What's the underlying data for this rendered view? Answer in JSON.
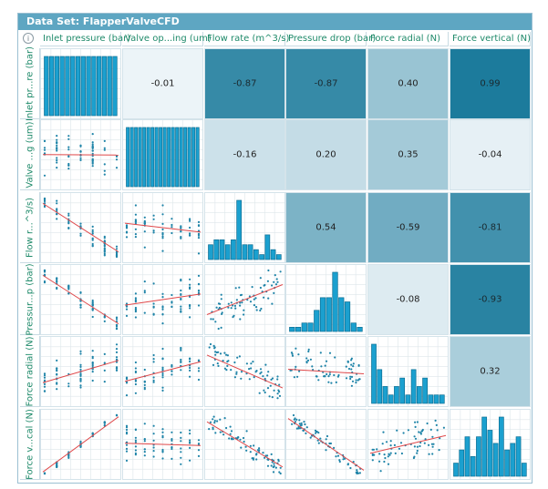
{
  "title": "Data Set: FlapperValveCFD",
  "info_icon": "info-icon",
  "column_headers": [
    "Inlet pressure (bar)",
    "Valve op...ing (um)",
    "Flow rate (m^3/s)",
    "Pressure drop (bar)",
    "Force radial (N)",
    "Force vertical (N)"
  ],
  "row_headers": [
    "Inlet pr...re (bar)",
    "Valve ...g (um)",
    "Flow r...^3/s)",
    "Pressur...p (bar)",
    "Force radial (N)",
    "Force v...cal (N)"
  ],
  "chart_data": {
    "type": "scatter",
    "matrix_type": "scatter-plot matrix",
    "variables": [
      "Inlet pressure (bar)",
      "Valve opening (um)",
      "Flow rate (m^3/s)",
      "Pressure drop (bar)",
      "Force radial (N)",
      "Force vertical (N)"
    ],
    "correlations": [
      [
        1,
        -0.01,
        -0.87,
        -0.87,
        0.4,
        0.99
      ],
      [
        -0.01,
        1,
        -0.16,
        0.2,
        0.35,
        -0.04
      ],
      [
        -0.87,
        -0.16,
        1,
        0.54,
        -0.59,
        -0.81
      ],
      [
        -0.87,
        0.2,
        0.54,
        1,
        -0.08,
        -0.93
      ],
      [
        0.4,
        0.35,
        -0.59,
        -0.08,
        1,
        0.32
      ],
      [
        0.99,
        -0.04,
        -0.81,
        -0.93,
        0.32,
        1
      ]
    ],
    "histograms": [
      [
        1,
        1,
        1,
        1,
        1,
        1,
        1,
        1,
        1,
        1,
        1,
        1,
        1,
        1
      ],
      [
        1,
        1,
        1,
        1,
        1,
        1,
        1,
        1,
        1,
        1,
        1,
        1,
        1,
        1,
        1,
        1,
        1,
        1
      ],
      [
        3,
        4,
        4,
        3,
        4,
        12,
        3,
        3,
        2,
        1,
        5,
        2,
        1
      ],
      [
        1,
        1,
        2,
        2,
        5,
        8,
        8,
        14,
        8,
        7,
        2,
        1
      ],
      [
        7,
        4,
        2,
        1,
        2,
        3,
        1,
        4,
        2,
        3,
        1,
        1,
        1
      ],
      [
        2,
        4,
        6,
        3,
        6,
        9,
        7,
        5,
        9,
        4,
        5,
        6,
        2
      ]
    ],
    "upper_triangle": "correlation coefficients",
    "lower_triangle": "scatter plots with linear fit",
    "diagonal": "histograms",
    "fit_line_color": "#e0484a",
    "point_color": "#1f84a8",
    "bar_color": "#1ba0cf",
    "grid": true
  }
}
